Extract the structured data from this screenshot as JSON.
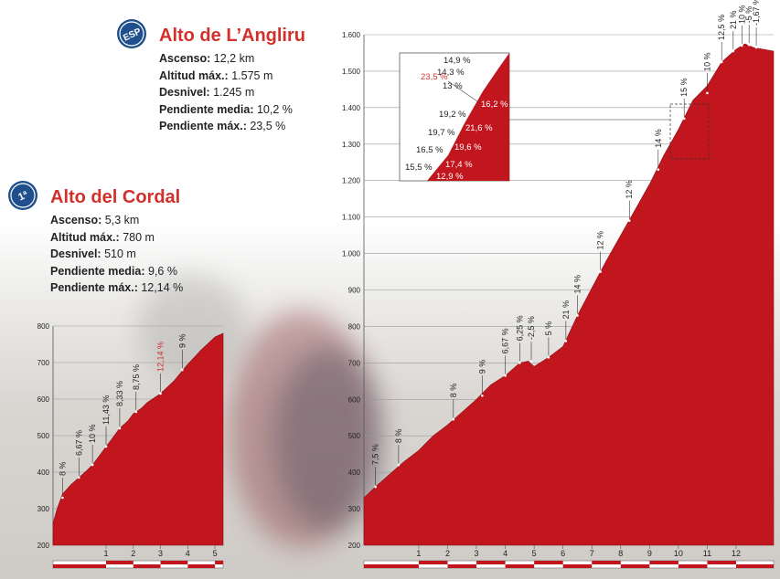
{
  "colors": {
    "accent": "#d2302b",
    "profile": "#c1161e",
    "badge": "#1f4f8c",
    "km_bar": "#c1161e"
  },
  "climbs": [
    {
      "name": "Alto de L’Angliru",
      "badge_icon": "category-esp-icon",
      "badge_text": "ESP",
      "stats": [
        {
          "label": "Ascenso:",
          "value": "12,2 km"
        },
        {
          "label": "Altitud máx.:",
          "value": "1.575 m"
        },
        {
          "label": "Desnivel:",
          "value": "1.245 m"
        },
        {
          "label": "Pendiente media:",
          "value": "10,2 %"
        },
        {
          "label": "Pendiente máx.:",
          "value": "23,5 %"
        }
      ]
    },
    {
      "name": "Alto del Cordal",
      "badge_icon": "category-1-icon",
      "badge_text": "1ª",
      "stats": [
        {
          "label": "Ascenso:",
          "value": "5,3 km"
        },
        {
          "label": "Altitud máx.:",
          "value": "780 m"
        },
        {
          "label": "Desnivel:",
          "value": "510 m"
        },
        {
          "label": "Pendiente media:",
          "value": "9,6 %"
        },
        {
          "label": "Pendiente máx.:",
          "value": "12,14 %"
        }
      ]
    }
  ],
  "chart_data": [
    {
      "type": "area",
      "xlabel": "",
      "ylabel": "",
      "ylim": [
        200,
        1600
      ],
      "xlim": [
        -0.9,
        13.3
      ],
      "y_ticks": [
        "200",
        "300",
        "400",
        "500",
        "600",
        "700",
        "800",
        "900",
        "1.000",
        "1.100",
        "1.200",
        "1.300",
        "1.400",
        "1.500",
        "1.600"
      ],
      "x_ticks": [
        "1",
        "2",
        "3",
        "4",
        "5",
        "6",
        "7",
        "8",
        "9",
        "10",
        "11",
        "12"
      ],
      "profile": [
        [
          -0.9,
          330
        ],
        [
          -0.5,
          360
        ],
        [
          0,
          395
        ],
        [
          0.5,
          430
        ],
        [
          1,
          460
        ],
        [
          1.5,
          500
        ],
        [
          2,
          530
        ],
        [
          2.5,
          565
        ],
        [
          3,
          600
        ],
        [
          3.5,
          640
        ],
        [
          4,
          665
        ],
        [
          4.5,
          700
        ],
        [
          4.8,
          705
        ],
        [
          5,
          690
        ],
        [
          5.5,
          715
        ],
        [
          6,
          745
        ],
        [
          6.5,
          830
        ],
        [
          7,
          905
        ],
        [
          7.5,
          980
        ],
        [
          8,
          1050
        ],
        [
          8.5,
          1120
        ],
        [
          9,
          1190
        ],
        [
          9.5,
          1270
        ],
        [
          10,
          1340
        ],
        [
          10.5,
          1420
        ],
        [
          11,
          1460
        ],
        [
          11.5,
          1525
        ],
        [
          12,
          1560
        ],
        [
          12.3,
          1575
        ],
        [
          12.6,
          1565
        ],
        [
          13.3,
          1555
        ]
      ],
      "gradients": [
        {
          "label": "7,5 %",
          "x": -0.5,
          "y": 360,
          "color": "#222"
        },
        {
          "label": "8 %",
          "x": 0.3,
          "y": 420,
          "color": "#222"
        },
        {
          "label": "8 %",
          "x": 2.2,
          "y": 545,
          "color": "#222"
        },
        {
          "label": "9 %",
          "x": 3.2,
          "y": 610,
          "color": "#222"
        },
        {
          "label": "6,67 %",
          "x": 4.0,
          "y": 665,
          "color": "#222"
        },
        {
          "label": "6,25 %",
          "x": 4.5,
          "y": 700,
          "color": "#222"
        },
        {
          "label": "-2,5 %",
          "x": 4.9,
          "y": 703,
          "color": "#222"
        },
        {
          "label": "5 %",
          "x": 5.5,
          "y": 715,
          "color": "#222"
        },
        {
          "label": "21 %",
          "x": 6.1,
          "y": 760,
          "color": "#222"
        },
        {
          "label": "14 %",
          "x": 6.5,
          "y": 830,
          "color": "#222"
        },
        {
          "label": "12 %",
          "x": 7.3,
          "y": 950,
          "color": "#222"
        },
        {
          "label": "12 %",
          "x": 8.3,
          "y": 1090,
          "color": "#222"
        },
        {
          "label": "14 %",
          "x": 9.3,
          "y": 1230,
          "color": "#222"
        },
        {
          "label": "15 %",
          "x": 10.2,
          "y": 1370,
          "color": "#222"
        },
        {
          "label": "10 %",
          "x": 11.0,
          "y": 1440,
          "color": "#222"
        },
        {
          "label": "12,5 %",
          "x": 11.5,
          "y": 1525,
          "color": "#222"
        },
        {
          "label": "21 %",
          "x": 11.9,
          "y": 1555,
          "color": "#222"
        },
        {
          "label": "10 %",
          "x": 12.2,
          "y": 1570,
          "color": "#222"
        },
        {
          "label": "-5 %",
          "x": 12.45,
          "y": 1572,
          "color": "#222"
        },
        {
          "label": "-1,67 %",
          "x": 12.7,
          "y": 1565,
          "color": "#222"
        }
      ],
      "inset": {
        "labels": [
          {
            "label": "14,9 %",
            "color": "#222"
          },
          {
            "label": "14,3 %",
            "color": "#222"
          },
          {
            "label": "13 %",
            "color": "#222"
          },
          {
            "label": "23,5 %",
            "color": "#d2302b"
          },
          {
            "label": "16,2 %",
            "color": "#ffffff"
          },
          {
            "label": "19,2 %",
            "color": "#222"
          },
          {
            "label": "19,7 %",
            "color": "#222"
          },
          {
            "label": "21,6 %",
            "color": "#ffffff"
          },
          {
            "label": "16,5 %",
            "color": "#222"
          },
          {
            "label": "19,6 %",
            "color": "#ffffff"
          },
          {
            "label": "15,5 %",
            "color": "#222"
          },
          {
            "label": "17,4 %",
            "color": "#ffffff"
          },
          {
            "label": "12,9 %",
            "color": "#ffffff"
          }
        ]
      }
    },
    {
      "type": "area",
      "xlabel": "",
      "ylabel": "",
      "ylim": [
        200,
        800
      ],
      "xlim": [
        -0.95,
        5.3
      ],
      "y_ticks": [
        "200",
        "300",
        "400",
        "500",
        "600",
        "700",
        "800"
      ],
      "x_ticks": [
        "1",
        "2",
        "3",
        "4",
        "5"
      ],
      "profile": [
        [
          -0.95,
          260
        ],
        [
          -0.8,
          300
        ],
        [
          -0.6,
          340
        ],
        [
          -0.3,
          365
        ],
        [
          0,
          385
        ],
        [
          0.3,
          405
        ],
        [
          0.5,
          420
        ],
        [
          0.8,
          450
        ],
        [
          1,
          470
        ],
        [
          1.3,
          500
        ],
        [
          1.5,
          520
        ],
        [
          1.8,
          540
        ],
        [
          2,
          560
        ],
        [
          2.3,
          575
        ],
        [
          2.5,
          590
        ],
        [
          2.8,
          605
        ],
        [
          3,
          615
        ],
        [
          3.5,
          650
        ],
        [
          4,
          695
        ],
        [
          4.5,
          735
        ],
        [
          5,
          770
        ],
        [
          5.3,
          780
        ]
      ],
      "gradients": [
        {
          "label": "8 %",
          "x": -0.6,
          "y": 330,
          "color": "#222"
        },
        {
          "label": "6,67 %",
          "x": 0.0,
          "y": 385,
          "color": "#222"
        },
        {
          "label": "10 %",
          "x": 0.5,
          "y": 420,
          "color": "#222"
        },
        {
          "label": "11,43 %",
          "x": 1.0,
          "y": 470,
          "color": "#222"
        },
        {
          "label": "8,33 %",
          "x": 1.5,
          "y": 520,
          "color": "#222"
        },
        {
          "label": "8,75 %",
          "x": 2.1,
          "y": 565,
          "color": "#222"
        },
        {
          "label": "12,14 %",
          "x": 3.0,
          "y": 615,
          "color": "#d2302b"
        },
        {
          "label": "9 %",
          "x": 3.8,
          "y": 680,
          "color": "#222"
        }
      ]
    }
  ]
}
